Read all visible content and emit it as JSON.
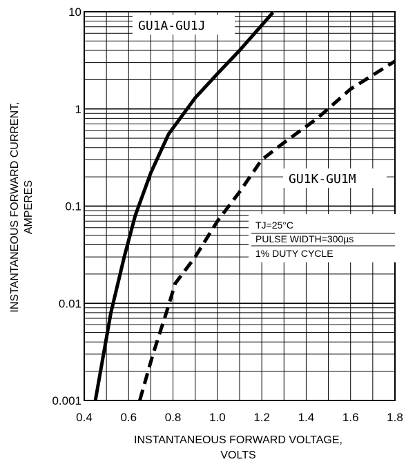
{
  "chart_data": {
    "type": "line",
    "xlabel_line1": "INSTANTANEOUS FORWARD VOLTAGE,",
    "xlabel_line2": "VOLTS",
    "ylabel_line1": "INSTANTANEOUS FORWARD CURRENT,",
    "ylabel_line2": "AMPERES",
    "xlim": [
      0.4,
      1.8
    ],
    "ylim": [
      0.001,
      10
    ],
    "yscale": "log",
    "grid": true,
    "x_ticks": [
      "0.4",
      "0.6",
      "0.8",
      "1.0",
      "1.2",
      "1.4",
      "1.6",
      "1.8"
    ],
    "y_ticks": [
      "0.001",
      "0.01",
      "0.1",
      "1",
      "10"
    ],
    "series": [
      {
        "name": "GU1A-GU1J",
        "style": "solid",
        "points": [
          [
            0.45,
            0.001
          ],
          [
            0.52,
            0.008
          ],
          [
            0.58,
            0.03
          ],
          [
            0.63,
            0.08
          ],
          [
            0.7,
            0.22
          ],
          [
            0.78,
            0.55
          ],
          [
            0.9,
            1.3
          ],
          [
            1.0,
            2.3
          ],
          [
            1.1,
            4.0
          ],
          [
            1.25,
            9.8
          ]
        ]
      },
      {
        "name": "GU1K-GU1M",
        "style": "dashed",
        "points": [
          [
            0.65,
            0.001
          ],
          [
            0.71,
            0.003
          ],
          [
            0.77,
            0.008
          ],
          [
            0.81,
            0.016
          ],
          [
            0.9,
            0.03
          ],
          [
            1.0,
            0.07
          ],
          [
            1.1,
            0.14
          ],
          [
            1.2,
            0.3
          ],
          [
            1.3,
            0.45
          ],
          [
            1.45,
            0.8
          ],
          [
            1.6,
            1.6
          ],
          [
            1.8,
            3.1
          ]
        ]
      }
    ],
    "annotations": [
      "TJ=25°C",
      "PULSE WIDTH=300µs",
      "1% DUTY CYCLE"
    ]
  },
  "colors": {
    "line": "#000000",
    "grid": "#000000",
    "background": "#ffffff"
  }
}
